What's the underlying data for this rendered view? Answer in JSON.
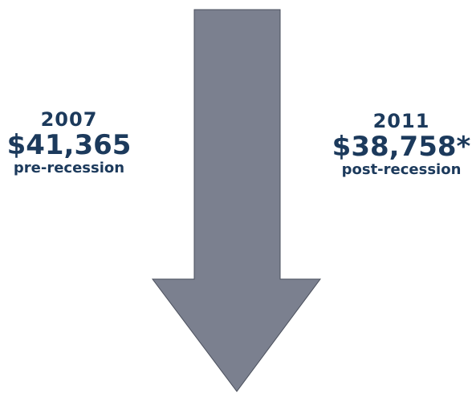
{
  "colors": {
    "arrow_fill": "#7b808f",
    "arrow_stroke": "#4a4f5c",
    "text": "#1c3a5c"
  },
  "left_stat": {
    "year": "2007",
    "amount": "$41,365",
    "caption": "pre-recession"
  },
  "right_stat": {
    "year": "2011",
    "amount": "$38,758*",
    "caption": "post-recession"
  },
  "icon": "down-arrow-icon"
}
